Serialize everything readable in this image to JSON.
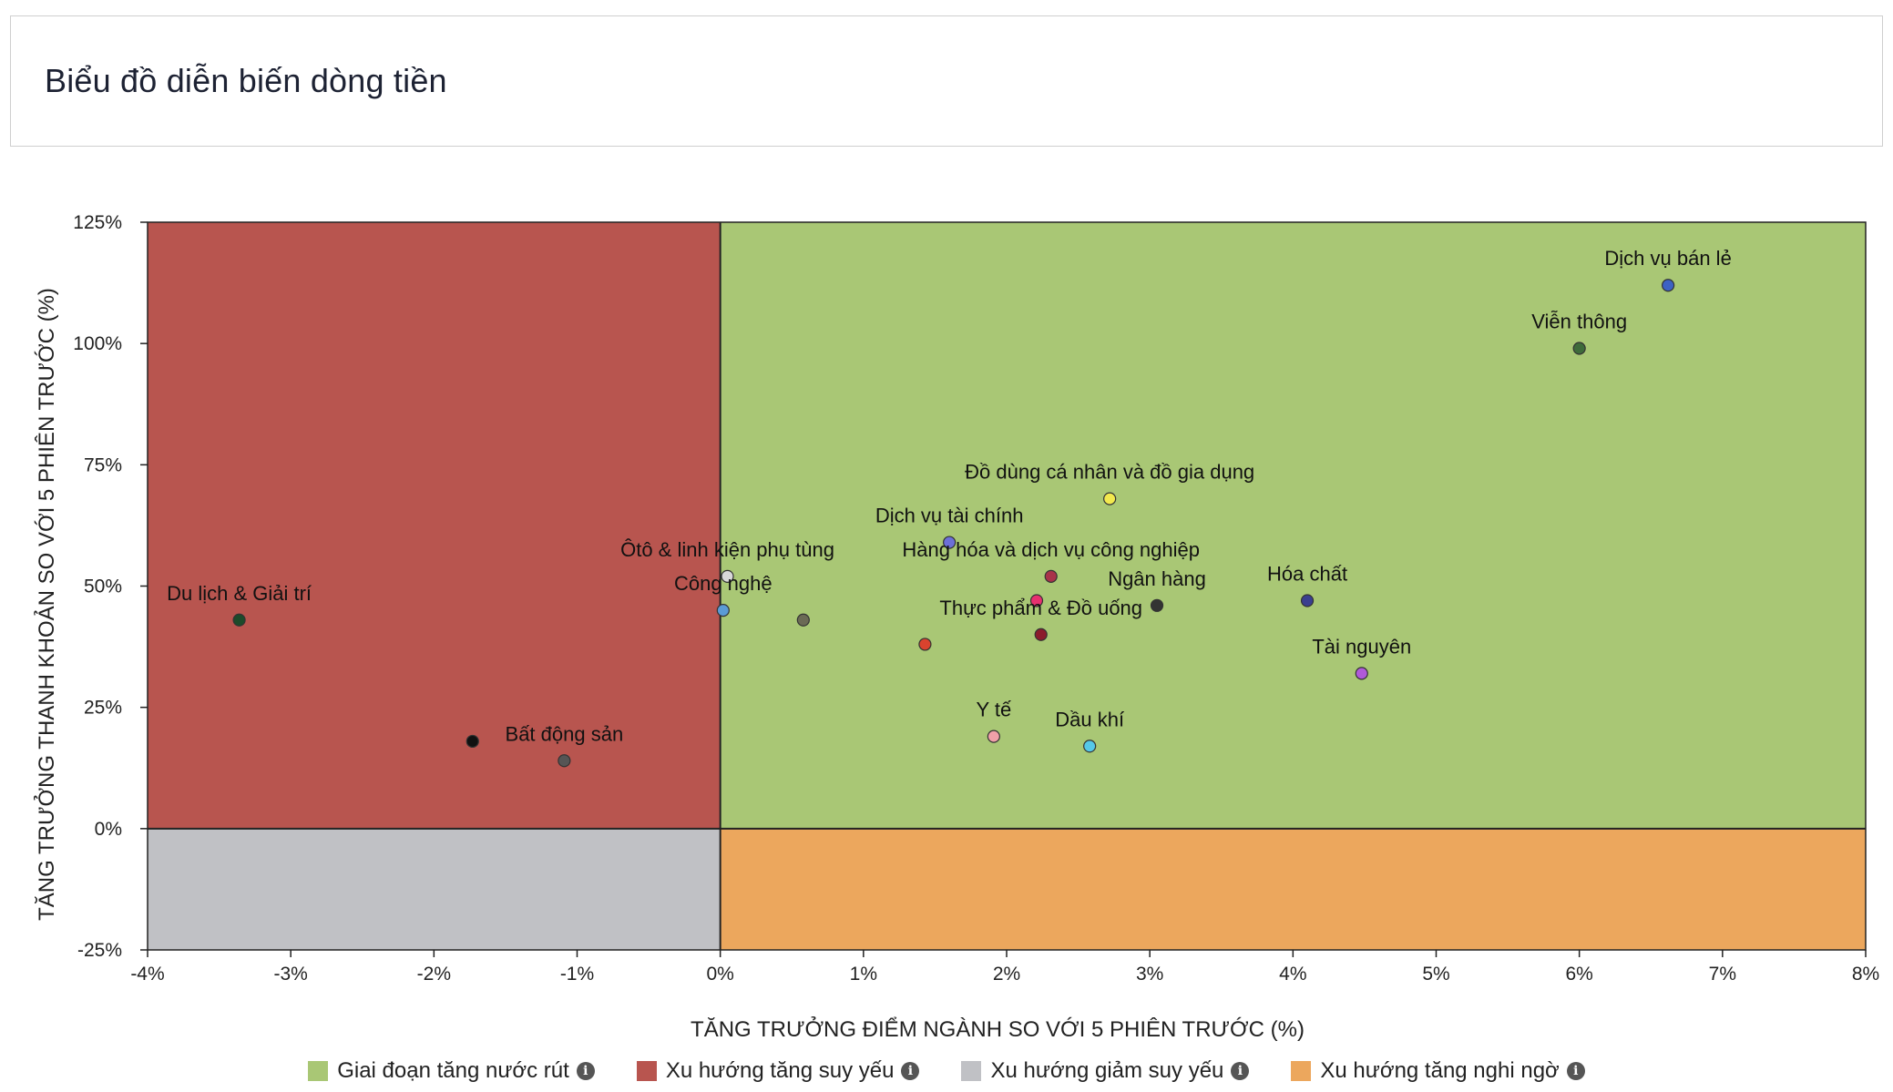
{
  "page": {
    "title": "Biểu đồ diễn biến dòng tiền"
  },
  "chart_data": {
    "type": "scatter",
    "xlabel": "TĂNG TRƯỞNG ĐIỂM NGÀNH SO VỚI 5 PHIÊN TRƯỚC (%)",
    "ylabel": "TĂNG TRƯỞNG THANH KHOẢN SO VỚI 5 PHIÊN TRƯỚC (%)",
    "xlim": [
      -4,
      8
    ],
    "ylim": [
      -25,
      125
    ],
    "x_ticks": [
      -4,
      -3,
      -2,
      -1,
      0,
      1,
      2,
      3,
      4,
      5,
      6,
      7,
      8
    ],
    "x_tick_labels": [
      "-4%",
      "-3%",
      "-2%",
      "-1%",
      "0%",
      "1%",
      "2%",
      "3%",
      "4%",
      "5%",
      "6%",
      "7%",
      "8%"
    ],
    "y_ticks": [
      -25,
      0,
      25,
      50,
      75,
      100,
      125
    ],
    "y_tick_labels": [
      "-25%",
      "0%",
      "25%",
      "50%",
      "75%",
      "100%",
      "125%"
    ],
    "quadrants": [
      {
        "name": "Giai đoạn tăng nước rút",
        "color": "#a9c775",
        "x": [
          0,
          8
        ],
        "y": [
          0,
          125
        ]
      },
      {
        "name": "Xu hướng tăng suy yếu",
        "color": "#b8554f",
        "x": [
          -4,
          0
        ],
        "y": [
          0,
          125
        ]
      },
      {
        "name": "Xu hướng giảm suy yếu",
        "color": "#c0c1c5",
        "x": [
          -4,
          0
        ],
        "y": [
          -25,
          0
        ]
      },
      {
        "name": "Xu hướng tăng nghi ngờ",
        "color": "#eca75d",
        "x": [
          0,
          8
        ],
        "y": [
          -25,
          0
        ]
      }
    ],
    "points": [
      {
        "label": "Dịch vụ bán lẻ",
        "x": 6.62,
        "y": 112,
        "color": "#3d62c4"
      },
      {
        "label": "Viễn thông",
        "x": 6.0,
        "y": 99,
        "color": "#3e6b3a"
      },
      {
        "label": "Đồ dùng cá nhân và đồ gia dụng",
        "x": 2.72,
        "y": 68,
        "color": "#f2e94e"
      },
      {
        "label": "Dịch vụ tài chính",
        "x": 1.6,
        "y": 59,
        "color": "#6c6fd8"
      },
      {
        "label": "Hàng hóa và dịch vụ công nghiệp",
        "x": 2.31,
        "y": 52,
        "color": "#a8324a"
      },
      {
        "label": "Ôtô & linh kiện phụ tùng",
        "x": 0.05,
        "y": 52,
        "color": "#d8d8d8"
      },
      {
        "label": "Công nghệ",
        "x": 0.02,
        "y": 45,
        "color": "#5b9bd5"
      },
      {
        "label": "",
        "x": 0.58,
        "y": 43,
        "color": "#6b6a55"
      },
      {
        "label": "Ngân hàng",
        "x": 3.05,
        "y": 46,
        "color": "#333333"
      },
      {
        "label": "",
        "x": 2.21,
        "y": 47,
        "color": "#e8306f"
      },
      {
        "label": "Thực phẩm & Đồ uống",
        "x": 2.24,
        "y": 40,
        "color": "#8b1c2c"
      },
      {
        "label": "",
        "x": 1.43,
        "y": 38,
        "color": "#d9432e"
      },
      {
        "label": "Hóa chất",
        "x": 4.1,
        "y": 47,
        "color": "#3a3f8f"
      },
      {
        "label": "Tài nguyên",
        "x": 4.48,
        "y": 32,
        "color": "#b05ad9"
      },
      {
        "label": "Du lịch & Giải trí",
        "x": -3.36,
        "y": 43,
        "color": "#1d4a2a"
      },
      {
        "label": "Bất động sản",
        "x": -1.09,
        "y": 14,
        "color": "#555555"
      },
      {
        "label": "",
        "x": -1.73,
        "y": 18,
        "color": "#111111"
      },
      {
        "label": "Y tế",
        "x": 1.91,
        "y": 19,
        "color": "#f0a0a8"
      },
      {
        "label": "Dầu khí",
        "x": 2.58,
        "y": 17,
        "color": "#55c8e8"
      }
    ]
  }
}
